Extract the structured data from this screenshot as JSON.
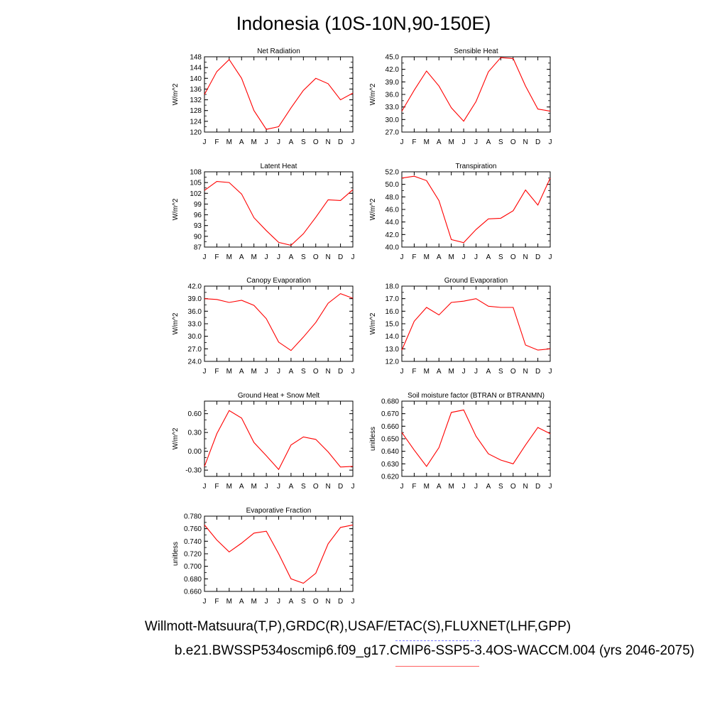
{
  "title": "Indonesia (10S-10N,90-150E)",
  "credits": {
    "observations": "Willmott-Matsuura(T,P),GRDC(R),USAF/ETAC(S),FLUXNET(LHF,GPP)",
    "model": "b.e21.BWSSP534oscmip6.f09_g17.CMIP6-SSP5-3.4OS-WACCM.004 (yrs 2046-2075)"
  },
  "colors": {
    "model_line": "#ff0000",
    "obs_legend": "#8080ff"
  },
  "chart_data": [
    {
      "type": "line",
      "title": "Net Radiation",
      "ylabel": "W/m^2",
      "categories": [
        "J",
        "F",
        "M",
        "A",
        "M",
        "J",
        "J",
        "A",
        "S",
        "O",
        "N",
        "D",
        "J"
      ],
      "ylim": [
        120,
        148
      ],
      "yticks": [
        "148",
        "144",
        "140",
        "136",
        "132",
        "128",
        "124",
        "120"
      ],
      "ytick_values": [
        148,
        144,
        140,
        136,
        132,
        128,
        124,
        120
      ],
      "values": [
        134,
        142.5,
        147,
        140,
        128,
        121,
        122,
        129,
        135.5,
        140,
        138,
        132,
        134.5
      ]
    },
    {
      "type": "line",
      "title": "Sensible Heat",
      "ylabel": "W/m^2",
      "categories": [
        "J",
        "F",
        "M",
        "A",
        "M",
        "J",
        "J",
        "A",
        "S",
        "O",
        "N",
        "D",
        "J"
      ],
      "ylim": [
        27,
        45
      ],
      "yticks": [
        "45.0",
        "42.0",
        "39.0",
        "36.0",
        "33.0",
        "30.0",
        "27.0"
      ],
      "ytick_values": [
        45,
        42,
        39,
        36,
        33,
        30,
        27
      ],
      "values": [
        32,
        37,
        41.6,
        38,
        32.8,
        29.6,
        34.3,
        41.4,
        44.8,
        44.6,
        38,
        32.5,
        32
      ]
    },
    {
      "type": "line",
      "title": "Latent Heat",
      "ylabel": "W/m^2",
      "categories": [
        "J",
        "F",
        "M",
        "A",
        "M",
        "J",
        "J",
        "A",
        "S",
        "O",
        "N",
        "D",
        "J"
      ],
      "ylim": [
        87,
        108
      ],
      "yticks": [
        "108",
        "105",
        "102",
        "99",
        "96",
        "93",
        "90",
        "87"
      ],
      "ytick_values": [
        108,
        105,
        102,
        99,
        96,
        93,
        90,
        87
      ],
      "values": [
        102.8,
        105.3,
        105,
        101.8,
        95.2,
        91.6,
        88.3,
        87.5,
        90.7,
        95.3,
        100.2,
        100,
        103
      ]
    },
    {
      "type": "line",
      "title": "Transpiration",
      "ylabel": "W/m^2",
      "categories": [
        "J",
        "F",
        "M",
        "A",
        "M",
        "J",
        "J",
        "A",
        "S",
        "O",
        "N",
        "D",
        "J"
      ],
      "ylim": [
        40,
        52
      ],
      "yticks": [
        "52.0",
        "50.0",
        "48.0",
        "46.0",
        "44.0",
        "42.0",
        "40.0"
      ],
      "ytick_values": [
        52,
        50,
        48,
        46,
        44,
        42,
        40
      ],
      "values": [
        51,
        51.3,
        50.6,
        47.4,
        41.2,
        40.7,
        42.8,
        44.5,
        44.6,
        45.8,
        49.1,
        46.7,
        51
      ]
    },
    {
      "type": "line",
      "title": "Canopy Evaporation",
      "ylabel": "W/m^2",
      "categories": [
        "J",
        "F",
        "M",
        "A",
        "M",
        "J",
        "J",
        "A",
        "S",
        "O",
        "N",
        "D",
        "J"
      ],
      "ylim": [
        24,
        42
      ],
      "yticks": [
        "42.0",
        "39.0",
        "36.0",
        "33.0",
        "30.0",
        "27.0",
        "24.0"
      ],
      "ytick_values": [
        42,
        39,
        36,
        33,
        30,
        27,
        24
      ],
      "values": [
        39,
        38.8,
        38.1,
        38.6,
        37.4,
        34.2,
        28.6,
        26.6,
        29.8,
        33.3,
        37.9,
        40.2,
        39.1
      ]
    },
    {
      "type": "line",
      "title": "Ground Evaporation",
      "ylabel": "W/m^2",
      "categories": [
        "J",
        "F",
        "M",
        "A",
        "M",
        "J",
        "J",
        "A",
        "S",
        "O",
        "N",
        "D",
        "J"
      ],
      "ylim": [
        12,
        18
      ],
      "yticks": [
        "18.0",
        "17.0",
        "16.0",
        "15.0",
        "14.0",
        "13.0",
        "12.0"
      ],
      "ytick_values": [
        18,
        17,
        16,
        15,
        14,
        13,
        12
      ],
      "values": [
        12.9,
        15.2,
        16.3,
        15.7,
        16.7,
        16.8,
        17,
        16.4,
        16.3,
        16.3,
        13.3,
        12.9,
        13
      ]
    },
    {
      "type": "line",
      "title": "Ground Heat + Snow Melt",
      "ylabel": "W/m^2",
      "categories": [
        "J",
        "F",
        "M",
        "A",
        "M",
        "J",
        "J",
        "A",
        "S",
        "O",
        "N",
        "D",
        "J"
      ],
      "ylim": [
        -0.4,
        0.8
      ],
      "yticks": [
        "0.60",
        "0.30",
        "0.00",
        "-0.30"
      ],
      "ytick_values": [
        0.6,
        0.3,
        0,
        -0.3
      ],
      "values": [
        -0.24,
        0.28,
        0.65,
        0.53,
        0.14,
        -0.07,
        -0.29,
        0.1,
        0.23,
        0.19,
        -0.01,
        -0.25,
        -0.24
      ]
    },
    {
      "type": "line",
      "title": "Soil moisture factor (BTRAN or BTRANMN)",
      "ylabel": "unitless",
      "categories": [
        "J",
        "F",
        "M",
        "A",
        "M",
        "J",
        "J",
        "A",
        "S",
        "O",
        "N",
        "D",
        "J"
      ],
      "ylim": [
        0.62,
        0.68
      ],
      "yticks": [
        "0.680",
        "0.670",
        "0.660",
        "0.650",
        "0.640",
        "0.630",
        "0.620"
      ],
      "ytick_values": [
        0.68,
        0.67,
        0.66,
        0.65,
        0.64,
        0.63,
        0.62
      ],
      "values": [
        0.655,
        0.641,
        0.628,
        0.643,
        0.671,
        0.673,
        0.652,
        0.638,
        0.633,
        0.63,
        0.645,
        0.659,
        0.654
      ]
    },
    {
      "type": "line",
      "title": "Evaporative Fraction",
      "ylabel": "unitless",
      "categories": [
        "J",
        "F",
        "M",
        "A",
        "M",
        "J",
        "J",
        "A",
        "S",
        "O",
        "N",
        "D",
        "J"
      ],
      "ylim": [
        0.66,
        0.78
      ],
      "yticks": [
        "0.780",
        "0.760",
        "0.740",
        "0.720",
        "0.700",
        "0.680",
        "0.660"
      ],
      "ytick_values": [
        0.78,
        0.76,
        0.74,
        0.72,
        0.7,
        0.68,
        0.66
      ],
      "values": [
        0.766,
        0.742,
        0.723,
        0.737,
        0.753,
        0.756,
        0.72,
        0.68,
        0.673,
        0.689,
        0.736,
        0.762,
        0.766
      ]
    }
  ]
}
